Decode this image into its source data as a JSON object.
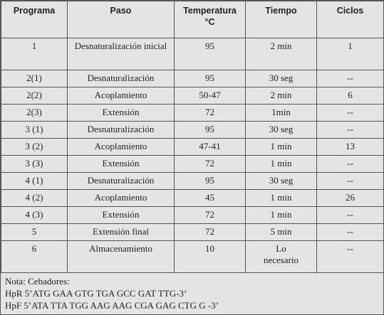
{
  "table": {
    "header": [
      "Programa",
      "Paso",
      "Temperatura °C",
      "Tiempo",
      "Ciclos"
    ],
    "rows": [
      [
        "1",
        "Desnaturalización inicial",
        "95",
        "2 min",
        "1"
      ],
      [
        "2(1)",
        "Desnaturalización",
        "95",
        "30 seg",
        "--"
      ],
      [
        "2(2)",
        "Acoplamiento",
        "50-47",
        "2 min",
        "6"
      ],
      [
        "2(3)",
        "Extensión",
        "72",
        "1min",
        "--"
      ],
      [
        "3 (1)",
        "Desnaturalización",
        "95",
        "30 seg",
        "--"
      ],
      [
        "3 (2)",
        "Acoplamiento",
        "47-41",
        "1 min",
        "13"
      ],
      [
        "3 (3)",
        "Extensión",
        "72",
        "1 min",
        "--"
      ],
      [
        "4 (1)",
        "Desnaturalización",
        "95",
        "30 seg",
        "--"
      ],
      [
        "4 (2)",
        "Acoplamiento",
        "45",
        "1 min",
        "26"
      ],
      [
        "4 (3)",
        "Extensión",
        "72",
        "1 min",
        "--"
      ],
      [
        "5",
        "Extensión final",
        "72",
        "5 min",
        "--"
      ],
      [
        "6",
        "Almacenamiento",
        "10",
        "Lo necesario",
        "--"
      ]
    ]
  },
  "notes": [
    "Nota: Cebadores:",
    "HpR 5’ATG GAA GTG TGA GCC GAT TTG-3’",
    "HpF 5’ATA TTA TGG AAG AAG CGA GAG CTG G -3’"
  ]
}
